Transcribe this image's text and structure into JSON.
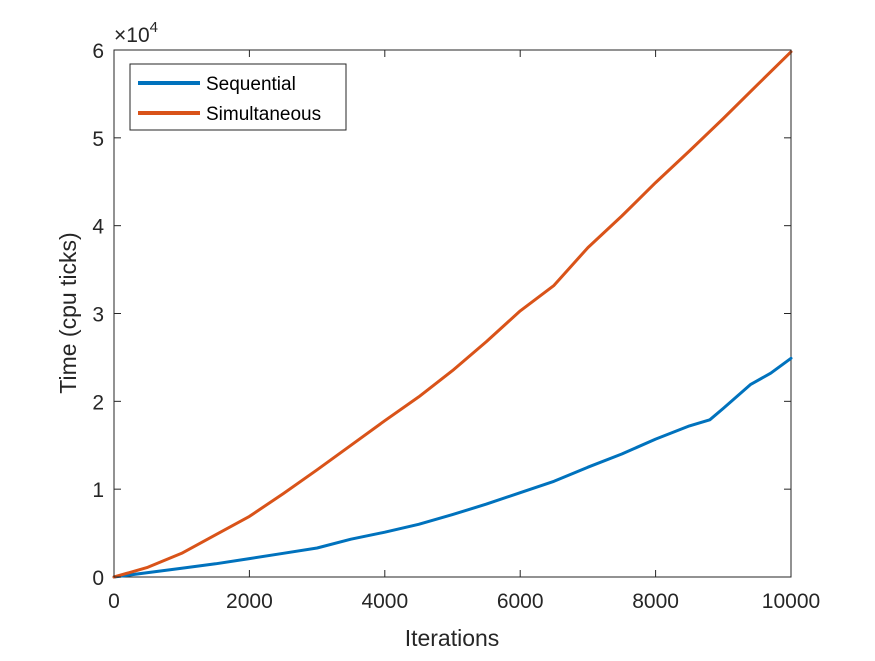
{
  "chart_data": {
    "type": "line",
    "xlabel": "Iterations",
    "ylabel": "Time (cpu ticks)",
    "xlim": [
      0,
      10000
    ],
    "ylim": [
      0,
      60000
    ],
    "x_ticks": [
      0,
      2000,
      4000,
      6000,
      8000,
      10000
    ],
    "x_tick_labels": [
      "0",
      "2000",
      "4000",
      "6000",
      "8000",
      "10000"
    ],
    "y_ticks": [
      0,
      10000,
      20000,
      30000,
      40000,
      50000,
      60000
    ],
    "y_tick_labels": [
      "0",
      "1",
      "2",
      "3",
      "4",
      "5",
      "6"
    ],
    "y_exponent_base": "×10",
    "y_exponent_power": "4",
    "grid": false,
    "legend_position": "top-left",
    "series": [
      {
        "name": "Sequential",
        "color": "#0072BD",
        "x": [
          0,
          500,
          1000,
          1500,
          2000,
          2500,
          3000,
          3500,
          4000,
          4500,
          5000,
          5500,
          6000,
          6500,
          7000,
          7500,
          8000,
          8500,
          8800,
          9000,
          9400,
          9700,
          10000
        ],
        "y": [
          0,
          500,
          1000,
          1500,
          2100,
          2700,
          3300,
          4300,
          5100,
          6000,
          7100,
          8300,
          9600,
          10900,
          12500,
          14000,
          15700,
          17200,
          17900,
          19200,
          21900,
          23200,
          24900
        ]
      },
      {
        "name": "Simultaneous",
        "color": "#D95319",
        "x": [
          0,
          500,
          1000,
          1500,
          2000,
          2500,
          3000,
          3500,
          4000,
          4500,
          5000,
          5500,
          6000,
          6500,
          7000,
          7500,
          8000,
          8500,
          9000,
          9500,
          10000
        ],
        "y": [
          0,
          1100,
          2700,
          4800,
          6900,
          9500,
          12200,
          15000,
          17800,
          20500,
          23500,
          26800,
          30300,
          33200,
          37500,
          41100,
          44900,
          48500,
          52200,
          56000,
          59800
        ]
      }
    ]
  }
}
